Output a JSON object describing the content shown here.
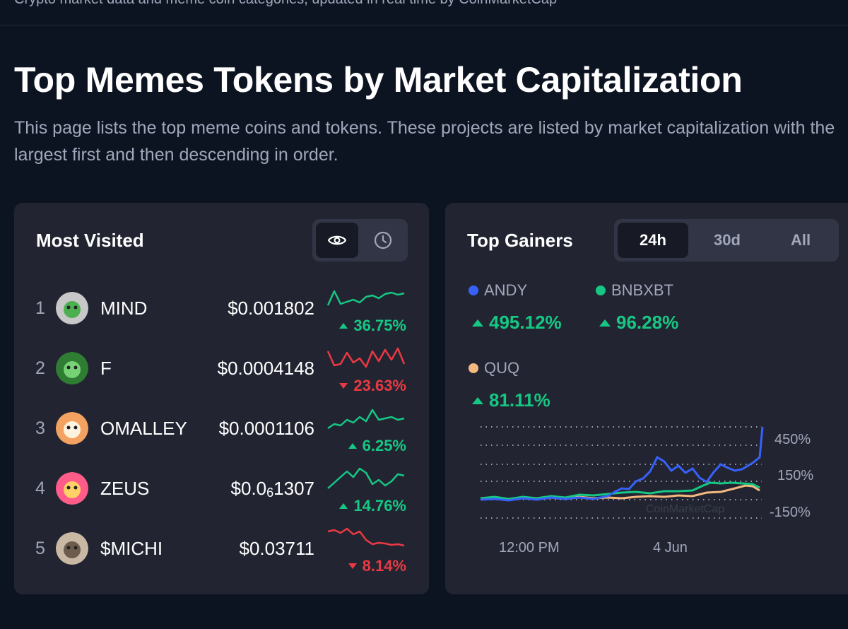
{
  "header": {
    "cut_text": "Crypto market data and meme coin categories, updated in real time by CoinMarketCap"
  },
  "page": {
    "title": "Top Memes Tokens by Market Capitalization",
    "description": "This page lists the top meme coins and tokens. These projects are listed by market capitalization with the largest first and then descending in order."
  },
  "most_visited": {
    "title": "Most Visited",
    "toggle": [
      {
        "icon": "eye-icon",
        "active": true
      },
      {
        "icon": "clock-icon",
        "active": false
      }
    ],
    "rows": [
      {
        "rank": "1",
        "name": "MIND",
        "price": "$0.001802",
        "change": "36.75%",
        "direction": "up",
        "spark": [
          30,
          10,
          28,
          25,
          22,
          26,
          18,
          16,
          20,
          14,
          12,
          15,
          13
        ]
      },
      {
        "rank": "2",
        "name": "F",
        "price": "$0.0004148",
        "change": "23.63%",
        "direction": "down",
        "spark": [
          10,
          30,
          28,
          12,
          26,
          20,
          32,
          10,
          24,
          8,
          22,
          6,
          28
        ]
      },
      {
        "rank": "3",
        "name": "OMALLEY",
        "price": "$0.0001106",
        "change": "6.25%",
        "direction": "up",
        "spark": [
          34,
          28,
          30,
          22,
          26,
          18,
          24,
          8,
          22,
          20,
          18,
          22,
          20
        ]
      },
      {
        "rank": "4",
        "name": "ZEUS",
        "price_main": "$0.0",
        "price_sub": "6",
        "price_rest": "1307",
        "change": "14.76%",
        "direction": "up",
        "spark": [
          34,
          26,
          18,
          10,
          18,
          6,
          12,
          28,
          22,
          30,
          24,
          14,
          16
        ]
      },
      {
        "rank": "5",
        "name": "$MICHI",
        "price": "$0.03711",
        "change": "8.14%",
        "direction": "down",
        "spark": [
          10,
          8,
          12,
          6,
          14,
          10,
          22,
          28,
          26,
          27,
          29,
          28,
          30
        ]
      }
    ]
  },
  "top_gainers": {
    "title": "Top Gainers",
    "tabs": [
      {
        "label": "24h",
        "active": true
      },
      {
        "label": "30d",
        "active": false
      },
      {
        "label": "All",
        "active": false
      }
    ],
    "coins": [
      {
        "name": "ANDY",
        "change": "495.12%",
        "color": "#3861fb"
      },
      {
        "name": "BNBXBT",
        "change": "96.28%",
        "color": "#16c784"
      },
      {
        "name": "QUQ",
        "change": "81.11%",
        "color": "#f5b97f"
      }
    ],
    "chart": {
      "y_ticks": [
        "450%",
        "150%",
        "-150%"
      ],
      "x_ticks": [
        "12:00 PM",
        "4 Jun"
      ],
      "watermark": "CoinMarketCap"
    }
  },
  "colors": {
    "background": "#0d1421",
    "card": "#222531",
    "up": "#16c784",
    "down": "#ea3943",
    "muted": "#a1a7bb"
  }
}
